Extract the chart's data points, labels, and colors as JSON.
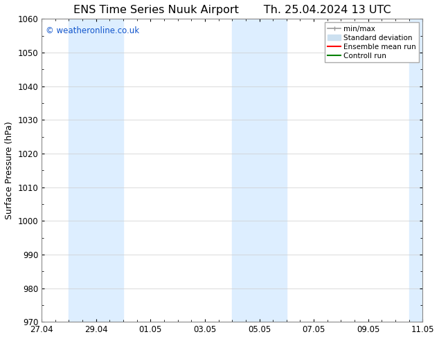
{
  "title_left": "ENS Time Series Nuuk Airport",
  "title_right": "Th. 25.04.2024 13 UTC",
  "ylabel": "Surface Pressure (hPa)",
  "ylim": [
    970,
    1060
  ],
  "yticks": [
    970,
    980,
    990,
    1000,
    1010,
    1020,
    1030,
    1040,
    1050,
    1060
  ],
  "xtick_labels": [
    "27.04",
    "29.04",
    "01.05",
    "03.05",
    "05.05",
    "07.05",
    "09.05",
    "11.05"
  ],
  "watermark": "© weatheronline.co.uk",
  "watermark_color": "#1155cc",
  "bg_color": "#ffffff",
  "plot_bg_color": "#ffffff",
  "band_color": "#ddeeff",
  "legend_items": [
    {
      "label": "min/max",
      "color": "#999999",
      "lw": 1.2,
      "style": "minmax"
    },
    {
      "label": "Standard deviation",
      "color": "#cce0f0",
      "lw": 8,
      "style": "band"
    },
    {
      "label": "Ensemble mean run",
      "color": "#ff0000",
      "lw": 1.5,
      "style": "line"
    },
    {
      "label": "Controll run",
      "color": "#008000",
      "lw": 1.5,
      "style": "line"
    }
  ],
  "spine_color": "#888888",
  "tick_color": "#000000",
  "title_fontsize": 11.5,
  "label_fontsize": 9,
  "tick_fontsize": 8.5,
  "x_min": 0,
  "x_max": 7,
  "band1_x0": 0.5,
  "band1_x1": 1.5,
  "band2_x0": 3.5,
  "band2_x1": 4.5,
  "band3_x0": 6.75,
  "band3_x1": 7.0
}
